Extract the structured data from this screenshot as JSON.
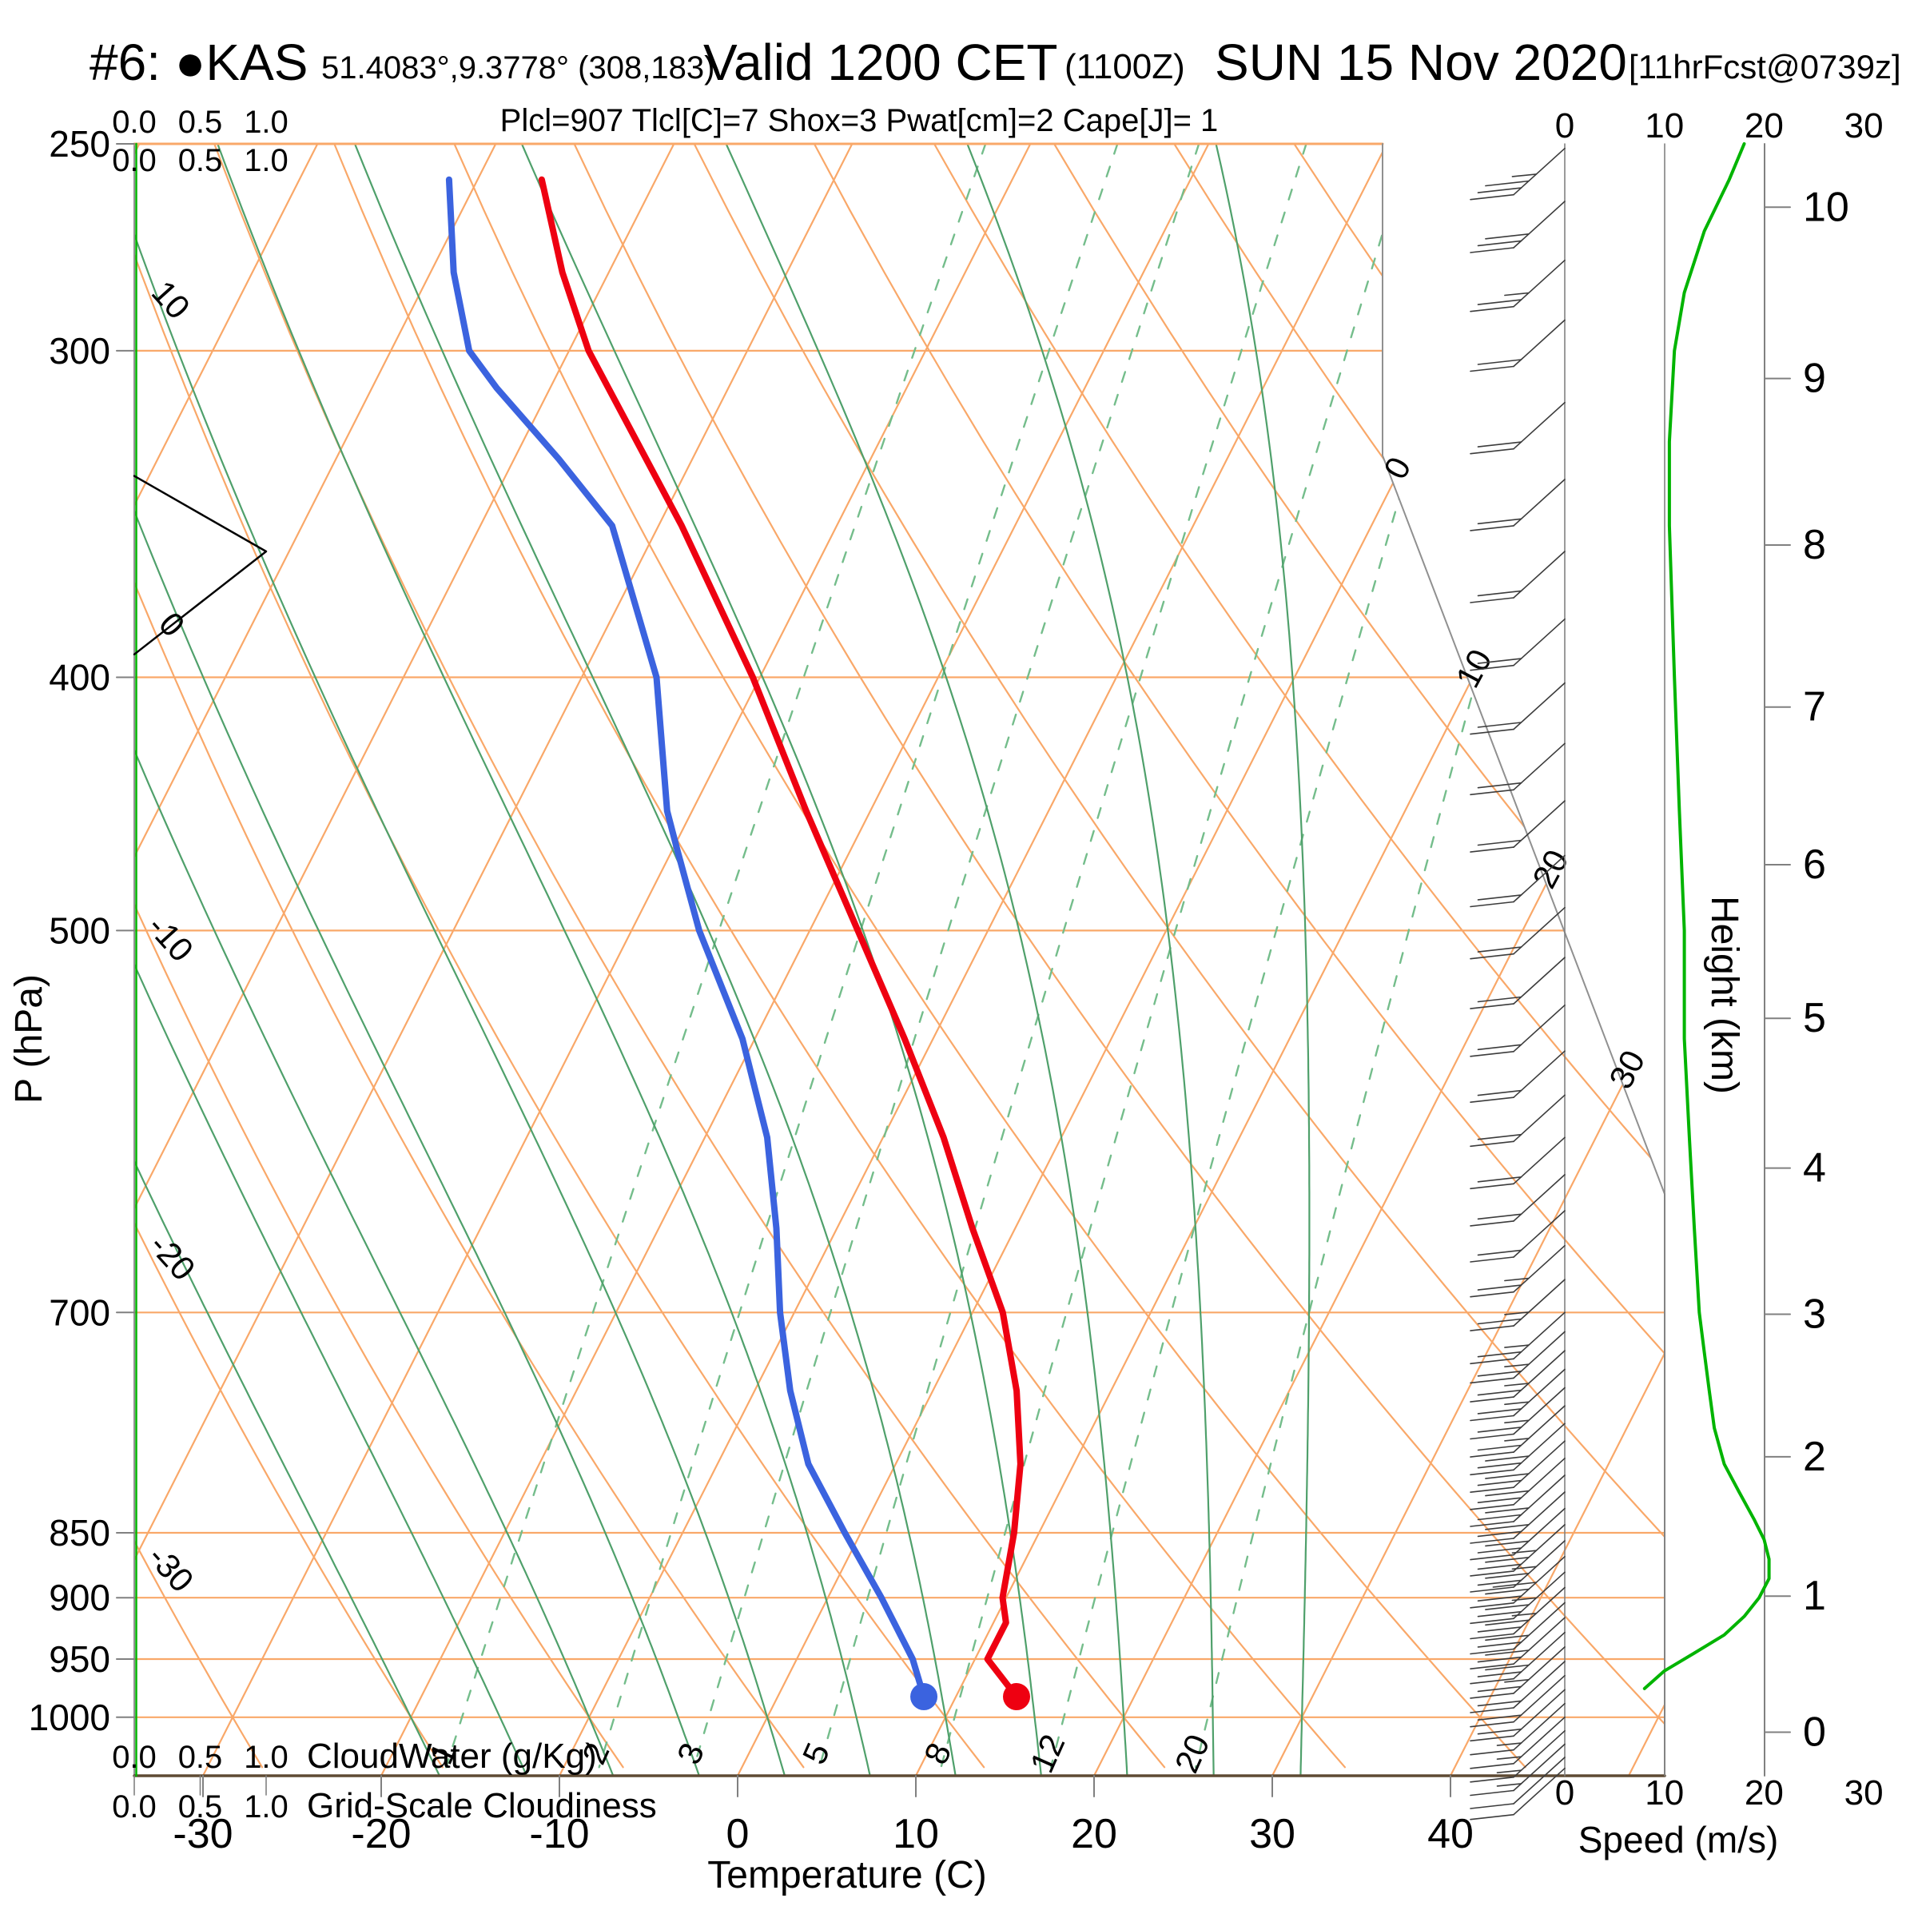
{
  "header": {
    "station": "#6: ●KAS",
    "coords": "51.4083°,9.3778° (308,183)",
    "valid": "Valid 1200 CET",
    "zulu": "(1100Z)",
    "date": "SUN 15 Nov 2020",
    "fcst": "[11hrFcst@0739z]",
    "params": "Plcl=907 Tlcl[C]=7 Shox=3 Pwat[cm]=2 Cape[J]= 1"
  },
  "axes": {
    "pressure": {
      "title": "P (hPa)",
      "ticks": [
        250,
        300,
        400,
        500,
        700,
        850,
        900,
        950,
        1000
      ]
    },
    "temperature": {
      "title": "Temperature (C)",
      "ticks": [
        -30,
        -20,
        -10,
        0,
        10,
        20,
        30,
        40
      ]
    },
    "height": {
      "title": "Height (km)",
      "ticks": [
        0,
        1,
        2,
        3,
        4,
        5,
        6,
        7,
        8,
        9,
        10
      ]
    },
    "speed": {
      "title": "Speed (m/s)",
      "ticks": [
        0,
        10,
        20,
        30
      ]
    },
    "cloudwater": {
      "label": "CloudWater (g/Kg)",
      "ticks": [
        "0.0",
        "0.5",
        "1.0"
      ]
    },
    "cloudiness": {
      "label": "Grid-Scale Cloudiness",
      "ticks": [
        "0.0",
        "0.5",
        "1.0"
      ]
    }
  },
  "chart_data": {
    "type": "line",
    "subtype": "skew-t-log-p-sounding",
    "title": "#6: ●KAS 51.4083°,9.3778° (308,183) Valid 1200 CET (1100Z) SUN 15 Nov 2020 [11hrFcst@0739z]",
    "parameters": {
      "Plcl": 907,
      "Tlcl_C": 7,
      "Shox": 3,
      "Pwat_cm": 2,
      "Cape_J": 1
    },
    "pressure_range_hPa": [
      250,
      1050
    ],
    "temperature_range_C": [
      -30,
      40
    ],
    "pressure_gridlines": [
      300,
      400,
      500,
      700,
      850,
      900,
      950,
      1000
    ],
    "isotherm_step_C": 10,
    "isotherm_labels_C": [
      0,
      10,
      20,
      30
    ],
    "dry_adiabat_labels_C": [
      -30,
      -20,
      -10,
      0,
      10
    ],
    "moist_adiabats_C": [
      -20,
      -15,
      -10,
      -5,
      0,
      5,
      10,
      15,
      20,
      25,
      30
    ],
    "mixing_ratio_lines_gkg": [
      1,
      2,
      3,
      5,
      8,
      12,
      20
    ],
    "temperature_profile_p_T": [
      [
        982,
        13.4
      ],
      [
        950,
        10.7
      ],
      [
        920,
        10.7
      ],
      [
        900,
        9.8
      ],
      [
        850,
        8.6
      ],
      [
        800,
        7.0
      ],
      [
        750,
        4.7
      ],
      [
        700,
        1.7
      ],
      [
        650,
        -2.4
      ],
      [
        600,
        -6.6
      ],
      [
        550,
        -11.6
      ],
      [
        500,
        -17.3
      ],
      [
        450,
        -23.6
      ],
      [
        400,
        -30.4
      ],
      [
        350,
        -38.7
      ],
      [
        300,
        -48.9
      ],
      [
        280,
        -52.6
      ],
      [
        258,
        -56.4
      ]
    ],
    "dewpoint_profile_p_Td": [
      [
        982,
        8.2
      ],
      [
        950,
        6.5
      ],
      [
        900,
        3.0
      ],
      [
        850,
        -0.9
      ],
      [
        800,
        -4.9
      ],
      [
        750,
        -8.0
      ],
      [
        700,
        -10.8
      ],
      [
        650,
        -13.4
      ],
      [
        600,
        -16.5
      ],
      [
        550,
        -20.7
      ],
      [
        500,
        -26.2
      ],
      [
        465,
        -29.8
      ],
      [
        450,
        -31.4
      ],
      [
        400,
        -35.8
      ],
      [
        350,
        -42.6
      ],
      [
        330,
        -47.5
      ],
      [
        310,
        -53.0
      ],
      [
        300,
        -55.6
      ],
      [
        280,
        -58.7
      ],
      [
        258,
        -61.6
      ]
    ],
    "parcel_path_p_T": [
      [
        982,
        13.4
      ],
      [
        965,
        12.0
      ]
    ],
    "surface_point": {
      "p": 982,
      "T": 13.4,
      "Td": 8.2
    },
    "cloudiness_profile_p_frac": [
      [
        335,
        0.0
      ],
      [
        358,
        1.0
      ],
      [
        392,
        0.0
      ]
    ],
    "cloudwater_profile_gkg": 0.0,
    "wind_barbs_p_ms": [
      [
        1046,
        7
      ],
      [
        1036,
        7
      ],
      [
        1024,
        8
      ],
      [
        1012,
        8
      ],
      [
        1000,
        9
      ],
      [
        988,
        9
      ],
      [
        976,
        10
      ],
      [
        964,
        11
      ],
      [
        952,
        12
      ],
      [
        940,
        13
      ],
      [
        928,
        15
      ],
      [
        916,
        16
      ],
      [
        904,
        17
      ],
      [
        892,
        18
      ],
      [
        880,
        19
      ],
      [
        868,
        20
      ],
      [
        856,
        19
      ],
      [
        844,
        18
      ],
      [
        832,
        17
      ],
      [
        820,
        16
      ],
      [
        808,
        16
      ],
      [
        796,
        15
      ],
      [
        784,
        15
      ],
      [
        772,
        15
      ],
      [
        760,
        14
      ],
      [
        748,
        14
      ],
      [
        736,
        14
      ],
      [
        724,
        13
      ],
      [
        712,
        13
      ],
      [
        700,
        13
      ],
      [
        680,
        13
      ],
      [
        660,
        13
      ],
      [
        640,
        12
      ],
      [
        620,
        12
      ],
      [
        600,
        12
      ],
      [
        578,
        12
      ],
      [
        556,
        12
      ],
      [
        534,
        12
      ],
      [
        512,
        12
      ],
      [
        490,
        11
      ],
      [
        468,
        11
      ],
      [
        446,
        11
      ],
      [
        424,
        10
      ],
      [
        402,
        10
      ],
      [
        380,
        10
      ],
      [
        358,
        10
      ],
      [
        336,
        10
      ],
      [
        314,
        11
      ],
      [
        292,
        12
      ],
      [
        277,
        14
      ],
      [
        263,
        16
      ],
      [
        251,
        18
      ]
    ],
    "speed_profile_p_ms": [
      [
        975,
        8
      ],
      [
        960,
        10
      ],
      [
        945,
        13
      ],
      [
        930,
        16
      ],
      [
        915,
        18
      ],
      [
        900,
        19.5
      ],
      [
        885,
        20.5
      ],
      [
        870,
        20.5
      ],
      [
        855,
        20
      ],
      [
        840,
        19
      ],
      [
        820,
        17.5
      ],
      [
        800,
        16
      ],
      [
        775,
        15
      ],
      [
        750,
        14.5
      ],
      [
        725,
        14
      ],
      [
        700,
        13.5
      ],
      [
        650,
        13
      ],
      [
        600,
        12.5
      ],
      [
        550,
        12
      ],
      [
        500,
        12
      ],
      [
        450,
        11.5
      ],
      [
        400,
        11
      ],
      [
        350,
        10.5
      ],
      [
        325,
        10.5
      ],
      [
        300,
        11
      ],
      [
        285,
        12
      ],
      [
        270,
        14
      ],
      [
        258,
        16.5
      ],
      [
        250,
        18
      ]
    ],
    "legend_position": "none",
    "grid": true,
    "colors": {
      "grid_orange": "#F9A869",
      "label_orange": "#F4975A",
      "moist_green": "#4FA06B",
      "mixing_green": "#74BD8B",
      "bright_green": "#00B400",
      "temperature_red": "#EE0011",
      "dewpoint_blue": "#3B63DF",
      "parcel_magenta": "#FF44CC",
      "barb_gray": "#3C3C3C",
      "axis_gray": "#808080",
      "bottom_border": "#5E4A33",
      "params_brown": "#A0522D"
    }
  }
}
